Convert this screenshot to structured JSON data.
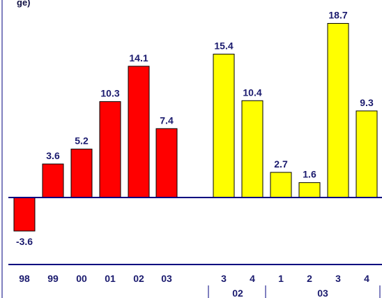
{
  "chart_data": {
    "type": "bar",
    "title_fragment": "ge)",
    "annual": {
      "categories": [
        "98",
        "99",
        "00",
        "01",
        "02",
        "03"
      ],
      "values": [
        -3.6,
        3.6,
        5.2,
        10.3,
        14.1,
        7.4
      ],
      "labels": [
        "-3.6",
        "3.6",
        "5.2",
        "10.3",
        "14.1",
        "7.4"
      ],
      "color": "#ff0000"
    },
    "quarterly": {
      "categories": [
        "3",
        "4",
        "1",
        "2",
        "3",
        "4"
      ],
      "values": [
        15.4,
        10.4,
        2.7,
        1.6,
        18.7,
        9.3
      ],
      "labels": [
        "15.4",
        "10.4",
        "2.7",
        "1.6",
        "18.7",
        "9.3"
      ],
      "color": "#ffff00"
    },
    "year_groups": [
      "02",
      "03"
    ],
    "text_color": "#1a1a6e",
    "axis_color": "#00007f"
  }
}
